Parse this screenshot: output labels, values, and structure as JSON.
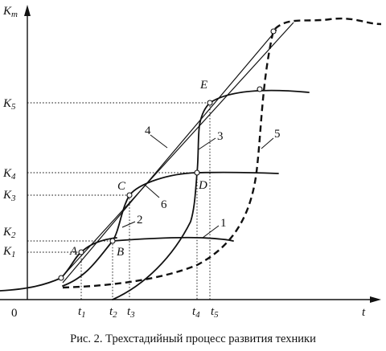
{
  "axes": {
    "y_label": {
      "main": "K",
      "sub": "m"
    },
    "x_label": "t",
    "origin": "0"
  },
  "y_ticks": [
    {
      "main": "K",
      "sub": "5"
    },
    {
      "main": "K",
      "sub": "4"
    },
    {
      "main": "K",
      "sub": "3"
    },
    {
      "main": "K",
      "sub": "2"
    },
    {
      "main": "K",
      "sub": "1"
    }
  ],
  "x_ticks": [
    {
      "main": "t",
      "sub": "1"
    },
    {
      "main": "t",
      "sub": "2"
    },
    {
      "main": "t",
      "sub": "3"
    },
    {
      "main": "t",
      "sub": "4"
    },
    {
      "main": "t",
      "sub": "5"
    }
  ],
  "points": {
    "A": "A",
    "B": "B",
    "C": "C",
    "D": "D",
    "E": "E"
  },
  "curve_numbers": {
    "c1": "1",
    "c2": "2",
    "c3": "3",
    "c4": "4",
    "c5": "5",
    "c6": "6"
  },
  "caption": "Рис. 2. Трехстадийный процесс развития техники"
}
